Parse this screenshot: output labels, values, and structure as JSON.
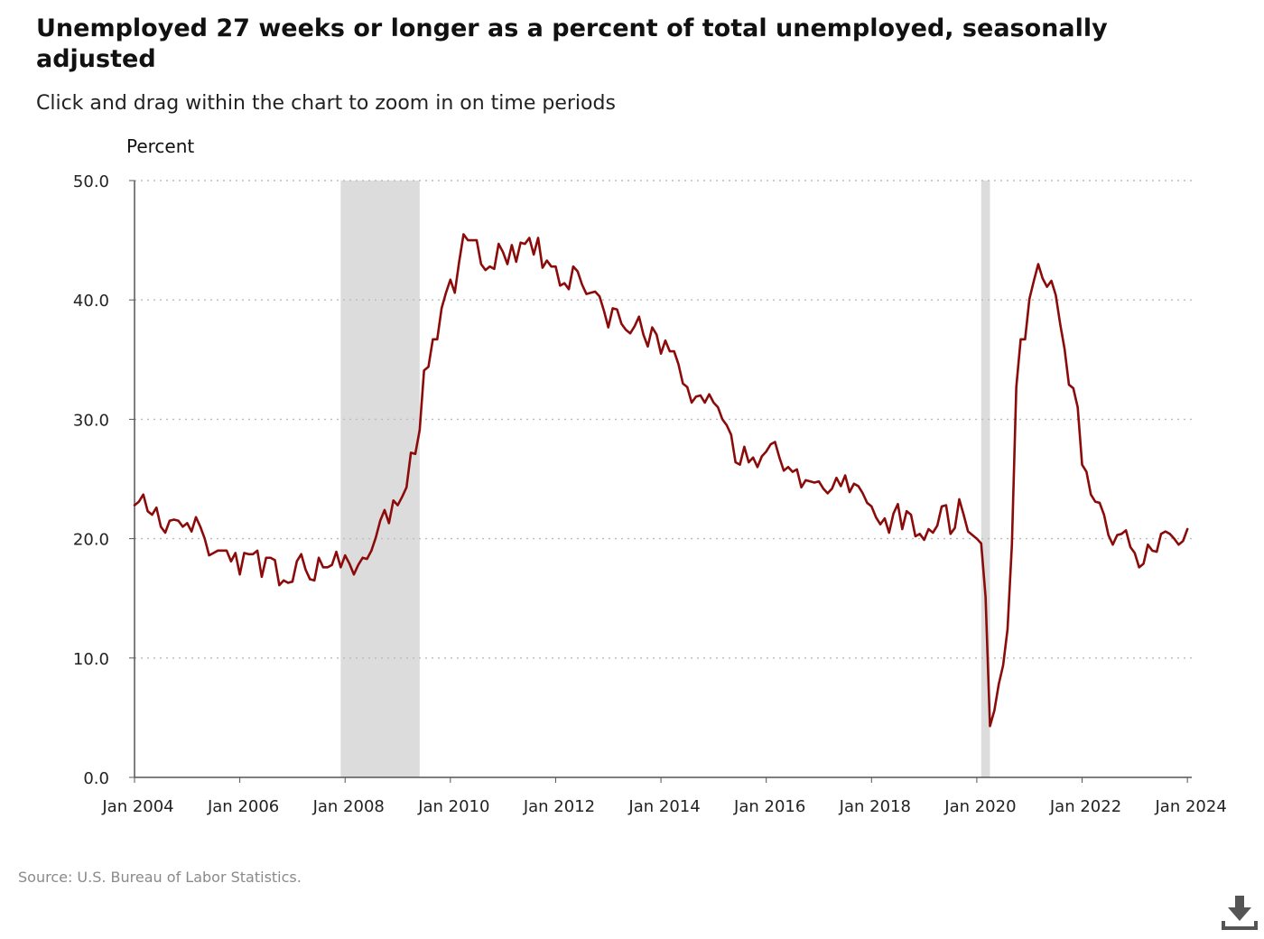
{
  "header": {
    "title": "Unemployed 27 weeks or longer as a percent of total unemployed, seasonally adjusted",
    "subtitle": "Click and drag within the chart to zoom in on time periods"
  },
  "footer": {
    "source": "Source: U.S. Bureau of Labor Statistics."
  },
  "colors": {
    "line": "#8b0a0a",
    "recession": "#dcdcdc",
    "grid": "#bbbbbb",
    "axis": "#555555"
  },
  "chart_data": {
    "type": "line",
    "title": "Unemployed 27 weeks or longer as a percent of total unemployed, seasonally adjusted",
    "ylabel": "Percent",
    "xlabel": "",
    "ylim": [
      0,
      50
    ],
    "xlim": [
      "2004-01",
      "2024-02"
    ],
    "grid": "horizontal-dotted",
    "y_ticks": [
      "0.0",
      "10.0",
      "20.0",
      "30.0",
      "40.0",
      "50.0"
    ],
    "x_ticks": [
      "Jan 2004",
      "Jan 2006",
      "Jan 2008",
      "Jan 2010",
      "Jan 2012",
      "Jan 2014",
      "Jan 2016",
      "Jan 2018",
      "Jan 2020",
      "Jan 2022",
      "Jan 2024"
    ],
    "recessions": [
      {
        "start": "2007-12",
        "end": "2009-06"
      },
      {
        "start": "2020-02",
        "end": "2020-04"
      }
    ],
    "series": [
      {
        "start": "2004-01",
        "frequency": "monthly",
        "values": [
          22.8,
          23.1,
          23.7,
          22.3,
          22.0,
          22.6,
          21.0,
          20.5,
          21.5,
          21.6,
          21.5,
          21.0,
          21.3,
          20.6,
          21.8,
          21.0,
          20.0,
          18.6,
          18.8,
          19.0,
          19.0,
          19.0,
          18.1,
          18.8,
          17.0,
          18.8,
          18.7,
          18.7,
          19.0,
          16.8,
          18.4,
          18.4,
          18.2,
          16.1,
          16.5,
          16.3,
          16.4,
          18.1,
          18.7,
          17.4,
          16.6,
          16.5,
          18.4,
          17.6,
          17.6,
          17.8,
          18.9,
          17.6,
          18.6,
          17.9,
          17.0,
          17.8,
          18.4,
          18.3,
          19.0,
          20.1,
          21.5,
          22.4,
          21.3,
          23.2,
          22.8,
          23.5,
          24.3,
          27.2,
          27.1,
          29.1,
          34.1,
          34.4,
          36.7,
          36.7,
          39.3,
          40.6,
          41.7,
          40.6,
          43.2,
          45.5,
          45.0,
          45.0,
          45.0,
          43.0,
          42.5,
          42.8,
          42.6,
          44.7,
          44.0,
          43.0,
          44.6,
          43.2,
          44.8,
          44.7,
          45.2,
          43.8,
          45.2,
          42.7,
          43.3,
          42.8,
          42.8,
          41.2,
          41.4,
          40.9,
          42.8,
          42.4,
          41.3,
          40.5,
          40.6,
          40.7,
          40.3,
          39.1,
          37.7,
          39.3,
          39.2,
          38.0,
          37.5,
          37.2,
          37.8,
          38.6,
          37.1,
          36.1,
          37.7,
          37.1,
          35.5,
          36.6,
          35.7,
          35.7,
          34.6,
          33.0,
          32.7,
          31.4,
          31.9,
          32.0,
          31.4,
          32.1,
          31.4,
          31.0,
          30.0,
          29.5,
          28.7,
          26.4,
          26.2,
          27.7,
          26.4,
          26.8,
          26.0,
          26.9,
          27.3,
          27.9,
          28.1,
          26.8,
          25.7,
          26.0,
          25.6,
          25.8,
          24.3,
          24.9,
          24.8,
          24.7,
          24.8,
          24.2,
          23.8,
          24.2,
          25.1,
          24.4,
          25.3,
          23.9,
          24.6,
          24.4,
          23.8,
          23.0,
          22.7,
          21.8,
          21.2,
          21.7,
          20.5,
          22.1,
          22.9,
          20.8,
          22.3,
          22.0,
          20.2,
          20.4,
          19.9,
          20.8,
          20.5,
          21.1,
          22.7,
          22.8,
          20.4,
          20.9,
          23.3,
          22.0,
          20.6,
          20.3,
          20.0,
          19.6,
          15.1,
          4.3,
          5.6,
          7.8,
          9.4,
          12.4,
          19.5,
          32.7,
          36.7,
          36.7,
          40.1,
          41.6,
          43.0,
          41.8,
          41.1,
          41.6,
          40.4,
          38.0,
          35.9,
          32.9,
          32.6,
          31.0,
          26.2,
          25.6,
          23.7,
          23.1,
          23.0,
          22.0,
          20.3,
          19.5,
          20.3,
          20.4,
          20.7,
          19.3,
          18.8,
          17.6,
          17.9,
          19.5,
          19.0,
          18.9,
          20.4,
          20.6,
          20.4,
          20.0,
          19.5,
          19.8,
          20.8
        ]
      }
    ]
  }
}
